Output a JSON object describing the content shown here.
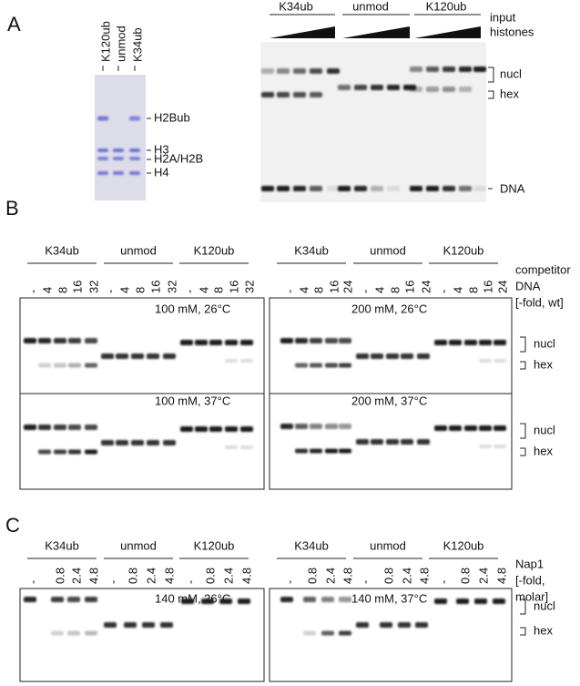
{
  "panel_a": {
    "label": "A",
    "sds_lanes": [
      "K120ub",
      "unmod",
      "K34ub"
    ],
    "sds_bands": [
      "H2Bub",
      "H3",
      "H2A/H2B",
      "H4"
    ],
    "native_groups": [
      "K34ub",
      "unmod",
      "K120ub"
    ],
    "input_label": [
      "input",
      "histones"
    ],
    "species": [
      "nucl",
      "hex",
      "DNA"
    ]
  },
  "panel_b": {
    "label": "B",
    "gels": [
      {
        "groups": [
          "K34ub",
          "unmod",
          "K120ub"
        ],
        "lanes": [
          "-",
          "4",
          "8",
          "16",
          "32",
          "-",
          "4",
          "8",
          "16",
          "32",
          "-",
          "4",
          "8",
          "16",
          "32"
        ],
        "conditions": [
          "100 mM, 26°C",
          "100 mM, 37°C"
        ]
      },
      {
        "groups": [
          "K34ub",
          "unmod",
          "K120ub"
        ],
        "lanes": [
          "-",
          "4",
          "8",
          "16",
          "24",
          "-",
          "4",
          "8",
          "16",
          "24",
          "-",
          "4",
          "8",
          "16",
          "24"
        ],
        "conditions": [
          "200 mM, 26°C",
          "200 mM, 37°C"
        ]
      }
    ],
    "axis_label": [
      "competitor",
      "DNA",
      "[-fold, wt]"
    ],
    "species": [
      "nucl",
      "hex"
    ]
  },
  "panel_c": {
    "label": "C",
    "gels": [
      {
        "groups": [
          "K34ub",
          "unmod",
          "K120ub"
        ],
        "lanes": [
          "-",
          "0.8",
          "2.4",
          "4.8",
          "-",
          "0.8",
          "2.4",
          "4.8",
          "-",
          "0.8",
          "2.4",
          "4.8"
        ],
        "conditions": [
          "140 mM, 26°C"
        ]
      },
      {
        "groups": [
          "K34ub",
          "unmod",
          "K120ub"
        ],
        "lanes": [
          "-",
          "0.8",
          "2.4",
          "4.8",
          "-",
          "0.8",
          "2.4",
          "4.8",
          "-",
          "0.8",
          "2.4",
          "4.8"
        ],
        "conditions": [
          "140 mM, 37°C"
        ]
      }
    ],
    "axis_label": [
      "Nap1",
      "[-fold,",
      "molar]"
    ],
    "species": [
      "nucl",
      "hex"
    ]
  }
}
